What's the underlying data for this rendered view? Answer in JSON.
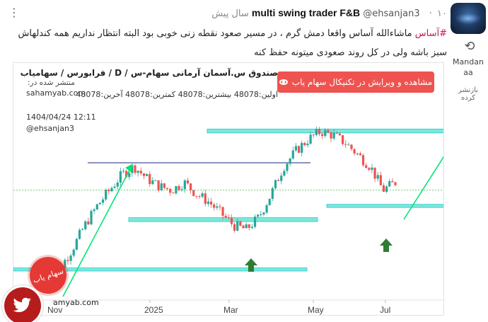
{
  "header": {
    "display_name": "multi swing trader F&B",
    "handle": "@ehsanjan3",
    "time_ago": "۱۰ سال پیش"
  },
  "retweeter": {
    "name": "Mandan aa",
    "label": "بازنشر کرده"
  },
  "tweet": {
    "hashtag": "#آساس",
    "text": "ماشاءالله آساس واقعا دمش گرم ، در مسیر صعود نقطه زنی خوبی بود البته انتظار نداریم همه کندلهاش سبز باشه ولی در کل روند صعودی میتونه حفظ کنه"
  },
  "chart_header": {
    "symbol_title": "صندوق س.آسمان آرمانی سهام-س  /  D  /  فرابورس / سهامیاب",
    "edit_button_label": "مشاهده و ویرایش در تکنیکال سهام یاب",
    "published_by_label": "منتشر شده در:",
    "site_url": "sahamyab.com",
    "ohlc_text": "اولین:48078  بیشترین:48078  کمترین:48078  آخرین:48078",
    "date": "1404/04/24 12:11",
    "author": "@ehsanjan3"
  },
  "watermark": {
    "logo_text": "سهام یاب",
    "url": "amyab.com"
  },
  "colors": {
    "bull": "#26a69a",
    "bear": "#ef5350",
    "zone": "#7de8d8",
    "resistance_line": "#1a237e",
    "arrow_green": "#00e676",
    "marker_green": "#2e7d32",
    "brand_red": "#ef5350"
  },
  "icons": {
    "menu": "ellipsis-icon",
    "retweet": "retweet-icon",
    "eye": "eye-icon",
    "twitter": "twitter-bird-icon"
  },
  "chart_data": {
    "type": "candlestick",
    "x_tick_labels": [
      "Nov",
      "2025",
      "Mar",
      "May",
      "Jul"
    ],
    "close_approx": [
      27500,
      30500,
      33000,
      36000,
      38500,
      40500,
      42500,
      43500,
      42000,
      41000,
      40500,
      41500,
      40000,
      39000,
      37500,
      36000,
      35500,
      37000,
      40000,
      43500,
      45500,
      47000,
      48000,
      47500,
      46500,
      45000,
      43500,
      40500,
      41500
    ],
    "support_zones": [
      [
        30200,
        30600
      ],
      [
        36500,
        37000
      ],
      [
        38300,
        38700
      ]
    ],
    "resistance_zone": [
      47800,
      48300
    ],
    "resistance_line": 44000,
    "annotations": [
      "up-arrow",
      "up-arrow",
      "trend-arrow",
      "trend-arrow"
    ]
  }
}
